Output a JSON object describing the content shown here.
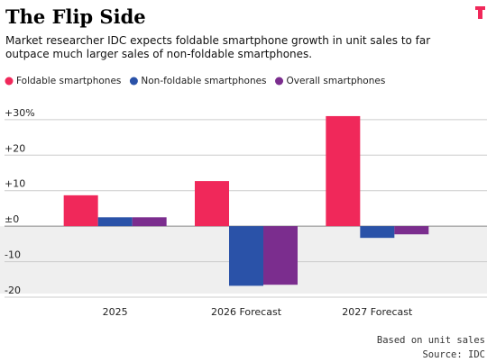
{
  "chart_data": {
    "type": "bar",
    "title": "The Flip Side",
    "subtitle": "Market researcher IDC expects foldable smartphone growth in unit sales to far outpace much larger sales of non-foldable smartphones.",
    "categories": [
      "2025",
      "2026 Forecast",
      "2027 Forecast"
    ],
    "series": [
      {
        "name": "Foldable smartphones",
        "color": "#f0285a",
        "values": [
          8.7,
          12.7,
          31
        ]
      },
      {
        "name": "Non-foldable smartphones",
        "color": "#2a52a8",
        "values": [
          2.5,
          -16.8,
          -3.3
        ]
      },
      {
        "name": "Overall smartphones",
        "color": "#7b2d8e",
        "values": [
          2.5,
          -16.5,
          -2.3
        ]
      }
    ],
    "ylim": [
      -20,
      32
    ],
    "yticks": [
      {
        "value": 30,
        "label": "+30%"
      },
      {
        "value": 20,
        "label": "+20"
      },
      {
        "value": 10,
        "label": "+10"
      },
      {
        "value": 0,
        "label": "±0"
      },
      -10,
      -20
    ],
    "grid": true,
    "notes": [
      "Based on unit sales",
      "Source: IDC"
    ]
  }
}
